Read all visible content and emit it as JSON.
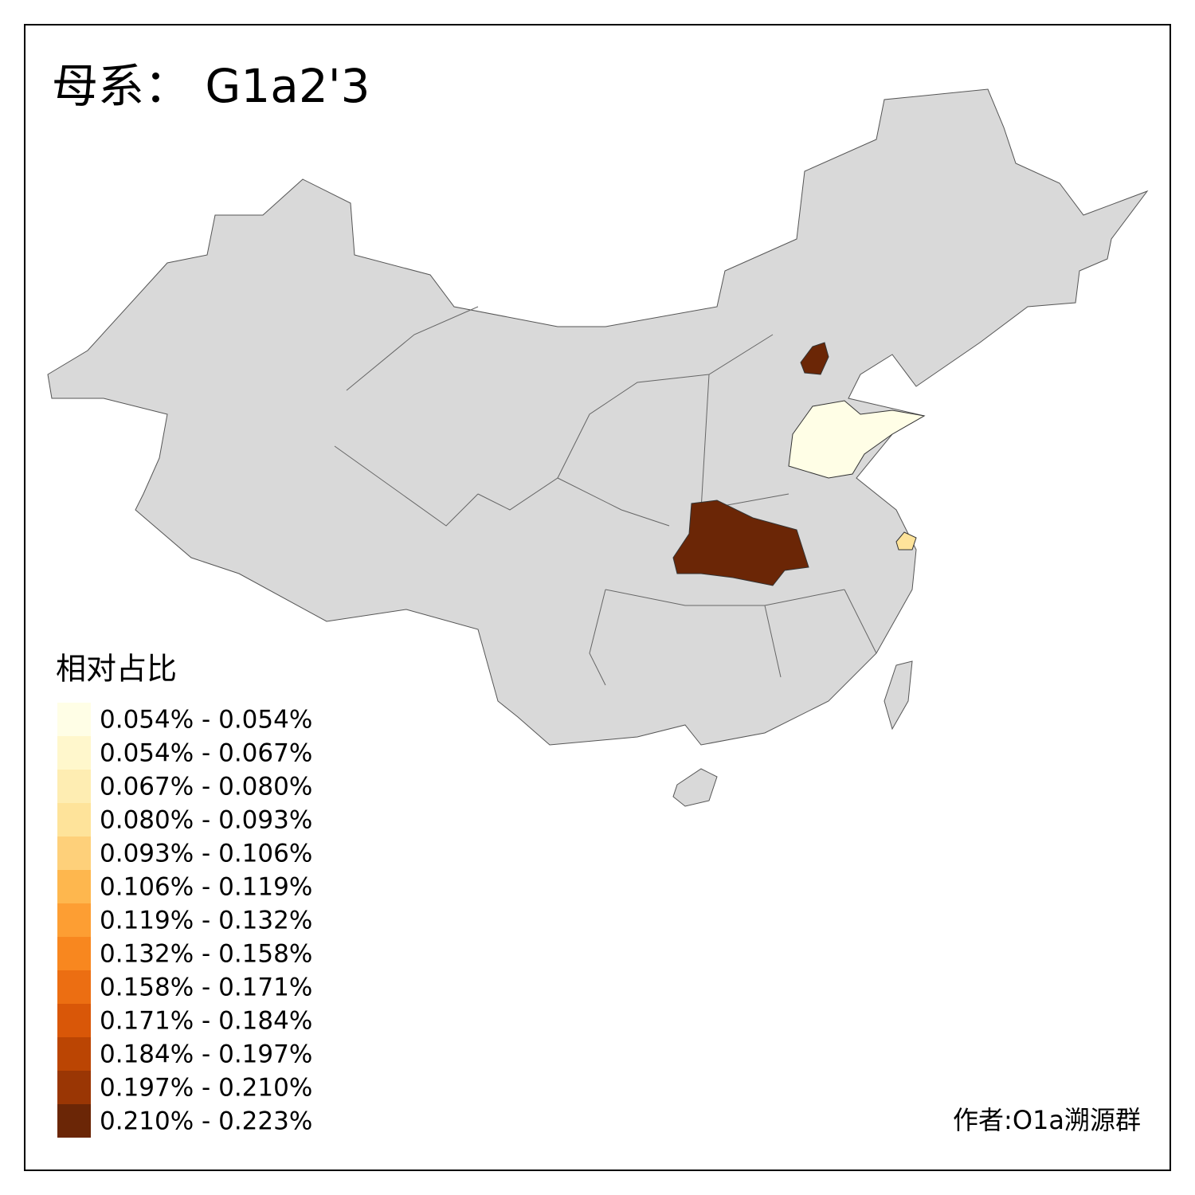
{
  "title": "母系： G1a2'3",
  "legend": {
    "title": "相对占比",
    "items": [
      {
        "label": "0.054% - 0.054%",
        "color": "#fffee6"
      },
      {
        "label": "0.054% - 0.067%",
        "color": "#fff7cc"
      },
      {
        "label": "0.067% - 0.080%",
        "color": "#feedb2"
      },
      {
        "label": "0.080% - 0.093%",
        "color": "#fee39a"
      },
      {
        "label": "0.093% - 0.106%",
        "color": "#fed07a"
      },
      {
        "label": "0.106% - 0.119%",
        "color": "#feb74e"
      },
      {
        "label": "0.119% - 0.132%",
        "color": "#fd9e33"
      },
      {
        "label": "0.132% - 0.158%",
        "color": "#f8871f"
      },
      {
        "label": "0.158% - 0.171%",
        "color": "#ec6e12"
      },
      {
        "label": "0.171% - 0.184%",
        "color": "#d95708"
      },
      {
        "label": "0.184% - 0.197%",
        "color": "#bb4503"
      },
      {
        "label": "0.197% - 0.210%",
        "color": "#9a3604"
      },
      {
        "label": "0.210% - 0.223%",
        "color": "#6b2606"
      }
    ]
  },
  "credit": "作者:O1a溯源群"
}
